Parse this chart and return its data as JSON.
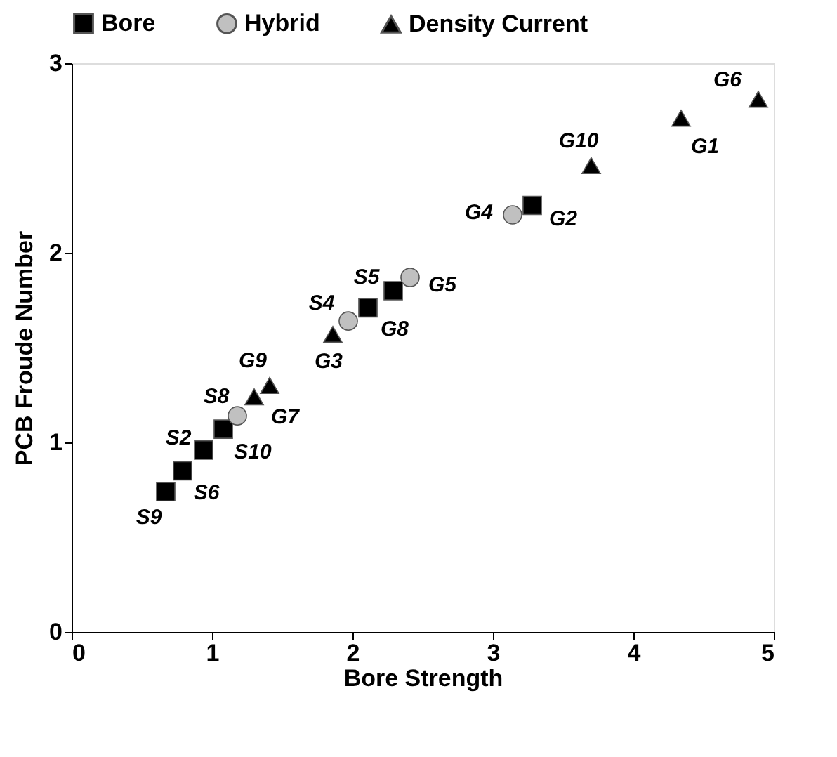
{
  "chart_data": {
    "type": "scatter",
    "xlabel": "Bore Strength",
    "ylabel": "PCB Froude Number",
    "xlim": [
      0,
      5
    ],
    "ylim": [
      0,
      3
    ],
    "xticks": [
      0,
      1,
      2,
      3,
      4,
      5
    ],
    "yticks": [
      0,
      1,
      2,
      3
    ],
    "grid": false,
    "legend": "top",
    "series": [
      {
        "name": "Bore",
        "color": "#000000",
        "marker": "square",
        "x": [
          0.67,
          0.79,
          0.94,
          1.08,
          2.11,
          2.29,
          3.28
        ],
        "values": [
          0.74,
          0.85,
          0.96,
          1.07,
          1.71,
          1.8,
          2.25
        ]
      },
      {
        "name": "Hybrid",
        "color": "#c0c0c0",
        "marker": "circle",
        "x": [
          1.18,
          1.97,
          2.41,
          3.14
        ],
        "values": [
          1.14,
          1.64,
          1.87,
          2.2
        ]
      },
      {
        "name": "Density Current",
        "color": "#000000",
        "marker": "triangle",
        "x": [
          1.3,
          1.41,
          1.86,
          3.7,
          4.34,
          4.89
        ],
        "values": [
          1.24,
          1.3,
          1.57,
          2.46,
          2.71,
          2.81
        ]
      }
    ],
    "annotations": [
      {
        "text": "S9",
        "x": 0.67,
        "y": 0.74
      },
      {
        "text": "S6",
        "x": 0.79,
        "y": 0.85
      },
      {
        "text": "S2",
        "x": 0.94,
        "y": 0.96
      },
      {
        "text": "S10",
        "x": 1.08,
        "y": 1.07
      },
      {
        "text": "S8",
        "x": 1.18,
        "y": 1.14
      },
      {
        "text": "G7",
        "x": 1.3,
        "y": 1.24
      },
      {
        "text": "G9",
        "x": 1.41,
        "y": 1.3
      },
      {
        "text": "G3",
        "x": 1.86,
        "y": 1.57
      },
      {
        "text": "S4",
        "x": 1.97,
        "y": 1.64
      },
      {
        "text": "G8",
        "x": 2.11,
        "y": 1.71
      },
      {
        "text": "S5",
        "x": 2.29,
        "y": 1.8
      },
      {
        "text": "G5",
        "x": 2.41,
        "y": 1.87
      },
      {
        "text": "G4",
        "x": 3.14,
        "y": 2.2
      },
      {
        "text": "G2",
        "x": 3.28,
        "y": 2.25
      },
      {
        "text": "G10",
        "x": 3.7,
        "y": 2.46
      },
      {
        "text": "G1",
        "x": 4.34,
        "y": 2.71
      },
      {
        "text": "G6",
        "x": 4.89,
        "y": 2.81
      }
    ]
  }
}
